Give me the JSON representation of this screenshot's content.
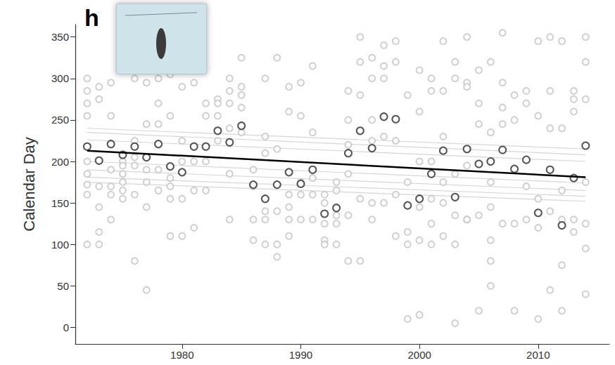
{
  "chart_data": {
    "type": "scatter",
    "panel_label": "h",
    "ylabel": "Calendar Day",
    "xlim": [
      1971,
      2016
    ],
    "xticks": [
      1980,
      1990,
      2000,
      2010
    ],
    "ylim": [
      -20,
      365
    ],
    "yticks": [
      0,
      50,
      100,
      150,
      200,
      250,
      300,
      350
    ],
    "grid": false,
    "series": [
      {
        "type": "scatter",
        "marker": "open_circle",
        "color": "#c4c4c4",
        "x": [
          1972,
          1972,
          1972,
          1972,
          1972,
          1972,
          1972,
          1972,
          1972,
          1973,
          1973,
          1973,
          1973,
          1973,
          1973,
          1974,
          1974,
          1974,
          1974,
          1974,
          1974,
          1975,
          1975,
          1975,
          1975,
          1975,
          1975,
          1976,
          1976,
          1976,
          1976,
          1976,
          1976,
          1977,
          1977,
          1977,
          1977,
          1977,
          1977,
          1978,
          1978,
          1978,
          1978,
          1978,
          1979,
          1979,
          1979,
          1979,
          1979,
          1979,
          1980,
          1980,
          1980,
          1980,
          1980,
          1981,
          1981,
          1981,
          1981,
          1982,
          1982,
          1982,
          1982,
          1983,
          1983,
          1983,
          1983,
          1984,
          1984,
          1984,
          1984,
          1984,
          1984,
          1985,
          1985,
          1985,
          1985,
          1985,
          1986,
          1986,
          1986,
          1986,
          1987,
          1987,
          1987,
          1987,
          1987,
          1987,
          1988,
          1988,
          1988,
          1988,
          1988,
          1989,
          1989,
          1989,
          1989,
          1989,
          1989,
          1990,
          1990,
          1990,
          1990,
          1990,
          1991,
          1991,
          1991,
          1991,
          1991,
          1992,
          1992,
          1992,
          1992,
          1992,
          1993,
          1993,
          1993,
          1993,
          1993,
          1994,
          1994,
          1994,
          1994,
          1994,
          1994,
          1995,
          1995,
          1995,
          1995,
          1995,
          1996,
          1996,
          1996,
          1996,
          1996,
          1996,
          1997,
          1997,
          1997,
          1997,
          1997,
          1998,
          1998,
          1998,
          1998,
          1998,
          1999,
          1999,
          1999,
          1999,
          1999,
          2000,
          2000,
          2000,
          2000,
          2000,
          2000,
          2001,
          2001,
          2001,
          2001,
          2001,
          2001,
          2002,
          2002,
          2002,
          2002,
          2002,
          2002,
          2003,
          2003,
          2003,
          2003,
          2003,
          2003,
          2004,
          2004,
          2004,
          2004,
          2004,
          2004,
          2005,
          2005,
          2005,
          2005,
          2005,
          2006,
          2006,
          2006,
          2006,
          2006,
          2006,
          2006,
          2007,
          2007,
          2007,
          2007,
          2007,
          2008,
          2008,
          2008,
          2008,
          2009,
          2009,
          2009,
          2009,
          2010,
          2010,
          2010,
          2010,
          2010,
          2011,
          2011,
          2011,
          2011,
          2011,
          2012,
          2012,
          2012,
          2012,
          2012,
          2012,
          2013,
          2013,
          2013,
          2013,
          2013,
          2014,
          2014,
          2014,
          2014,
          2014,
          2014,
          2014
        ],
        "values": [
          300,
          285,
          270,
          255,
          200,
          185,
          172,
          160,
          100,
          290,
          275,
          170,
          115,
          100,
          145,
          295,
          255,
          170,
          160,
          130,
          190,
          200,
          195,
          185,
          175,
          155,
          165,
          300,
          225,
          205,
          195,
          80,
          160,
          295,
          245,
          190,
          175,
          145,
          45,
          300,
          270,
          245,
          190,
          165,
          305,
          255,
          170,
          155,
          110,
          180,
          290,
          225,
          155,
          110,
          200,
          295,
          200,
          165,
          120,
          270,
          255,
          200,
          165,
          275,
          270,
          255,
          225,
          300,
          285,
          270,
          240,
          185,
          130,
          325,
          290,
          280,
          265,
          235,
          190,
          170,
          130,
          105,
          300,
          230,
          210,
          140,
          130,
          100,
          325,
          215,
          140,
          100,
          85,
          290,
          260,
          160,
          145,
          130,
          110,
          295,
          255,
          175,
          160,
          130,
          315,
          235,
          180,
          160,
          130,
          160,
          150,
          125,
          105,
          100,
          175,
          165,
          135,
          125,
          100,
          285,
          250,
          220,
          185,
          135,
          80,
          350,
          320,
          280,
          155,
          80,
          325,
          300,
          250,
          225,
          150,
          130,
          340,
          315,
          300,
          230,
          150,
          345,
          320,
          225,
          160,
          110,
          280,
          175,
          115,
          100,
          10,
          310,
          260,
          200,
          145,
          105,
          15,
          300,
          285,
          200,
          155,
          125,
          100,
          345,
          285,
          230,
          175,
          150,
          110,
          320,
          300,
          185,
          135,
          100,
          5,
          350,
          295,
          290,
          195,
          130,
          130,
          310,
          270,
          245,
          135,
          20,
          320,
          235,
          175,
          145,
          105,
          80,
          50,
          355,
          295,
          265,
          245,
          125,
          280,
          250,
          125,
          20,
          285,
          270,
          170,
          130,
          345,
          255,
          155,
          120,
          10,
          350,
          285,
          240,
          140,
          45,
          345,
          240,
          165,
          130,
          75,
          20,
          285,
          275,
          260,
          130,
          115,
          350,
          320,
          275,
          175,
          125,
          95,
          40
        ]
      },
      {
        "type": "line",
        "color": "#d6d6d6",
        "x": [
          1972,
          2014
        ],
        "values": [
          240,
          215
        ]
      },
      {
        "type": "line",
        "color": "#d6d6d6",
        "x": [
          1972,
          2014
        ],
        "values": [
          235,
          208
        ]
      },
      {
        "type": "line",
        "color": "#d6d6d6",
        "x": [
          1972,
          2014
        ],
        "values": [
          226,
          200
        ]
      },
      {
        "type": "line",
        "color": "#d6d6d6",
        "x": [
          1972,
          2014
        ],
        "values": [
          200,
          174
        ]
      },
      {
        "type": "line",
        "color": "#d6d6d6",
        "x": [
          1972,
          2014
        ],
        "values": [
          190,
          165
        ]
      },
      {
        "type": "line",
        "color": "#d6d6d6",
        "x": [
          1972,
          2014
        ],
        "values": [
          181,
          158
        ]
      },
      {
        "type": "line",
        "color": "#d6d6d6",
        "x": [
          1972,
          2014
        ],
        "values": [
          175,
          152
        ]
      },
      {
        "type": "scatter",
        "marker": "open_circle",
        "color": "#2a2a2a",
        "x": [
          1972,
          1973,
          1974,
          1975,
          1976,
          1977,
          1978,
          1979,
          1980,
          1981,
          1982,
          1983,
          1984,
          1985,
          1986,
          1987,
          1988,
          1989,
          1990,
          1991,
          1992,
          1993,
          1994,
          1995,
          1996,
          1997,
          1998,
          1999,
          2000,
          2001,
          2002,
          2003,
          2004,
          2005,
          2006,
          2007,
          2008,
          2009,
          2010,
          2011,
          2012,
          2013,
          2014
        ],
        "values": [
          218,
          201,
          221,
          208,
          218,
          205,
          221,
          194,
          187,
          218,
          218,
          237,
          223,
          243,
          172,
          155,
          172,
          187,
          173,
          190,
          137,
          144,
          210,
          237,
          216,
          254,
          251,
          147,
          155,
          185,
          213,
          157,
          215,
          197,
          200,
          214,
          191,
          202,
          138,
          190,
          123,
          180,
          219
        ]
      },
      {
        "type": "line",
        "color": "#000000",
        "x": [
          1972,
          2014
        ],
        "values": [
          213,
          181
        ]
      }
    ]
  }
}
